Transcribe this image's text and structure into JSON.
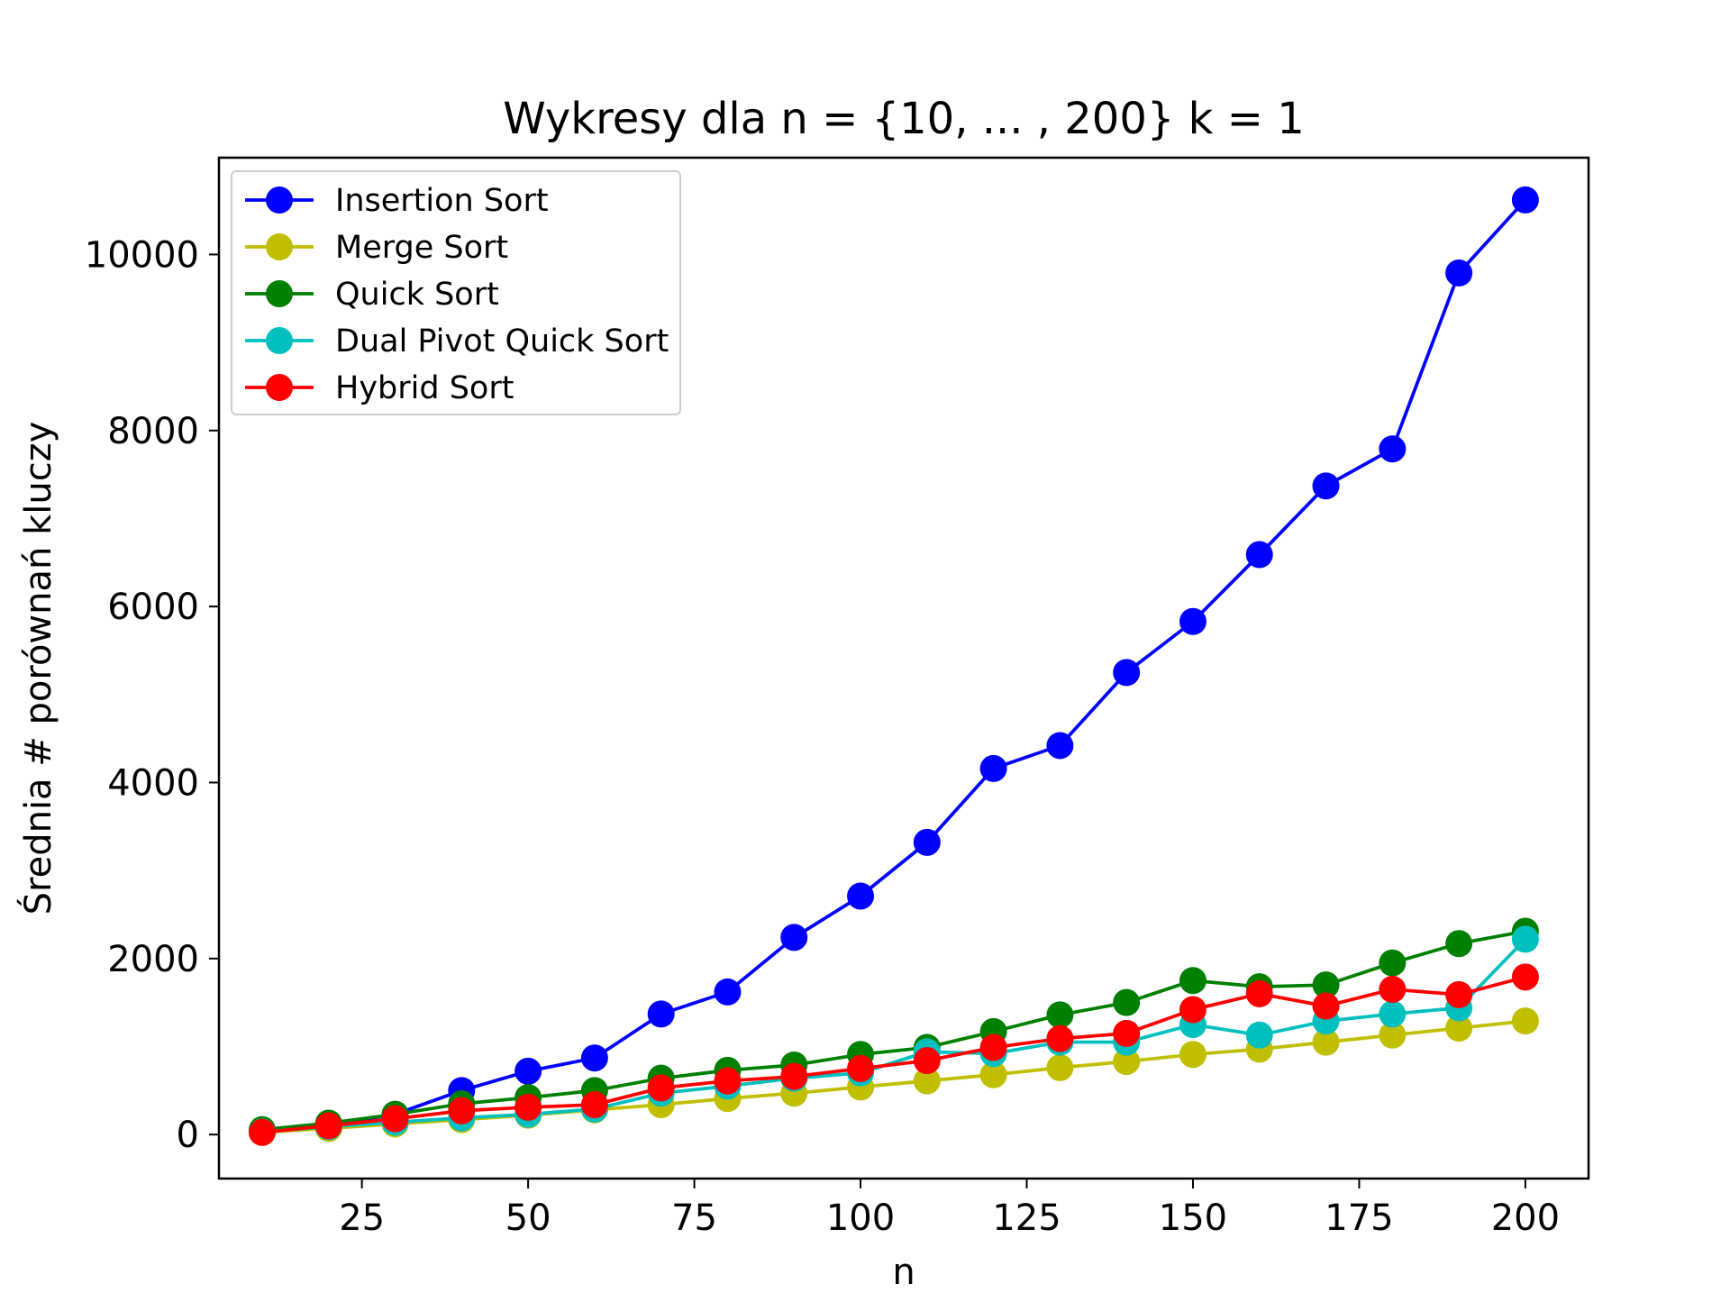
{
  "chart_data": {
    "type": "line",
    "title": "Wykresy dla n = {10, ... , 200} k = 1",
    "xlabel": "n",
    "ylabel": "Średnia # porównań kluczy",
    "xlim": [
      3.5,
      209.5
    ],
    "ylim": [
      -500,
      11100
    ],
    "xticks": [
      25,
      50,
      75,
      100,
      125,
      150,
      175,
      200
    ],
    "xtick_labels": [
      "25",
      "50",
      "75",
      "100",
      "125",
      "150",
      "175",
      "200"
    ],
    "yticks": [
      0,
      2000,
      4000,
      6000,
      8000,
      10000
    ],
    "ytick_labels": [
      "0",
      "2000",
      "4000",
      "6000",
      "8000",
      "10000"
    ],
    "grid": false,
    "legend_position": "upper-left",
    "x": [
      10,
      20,
      30,
      40,
      50,
      60,
      70,
      80,
      90,
      100,
      110,
      120,
      130,
      140,
      150,
      160,
      170,
      180,
      190,
      200
    ],
    "series": [
      {
        "name": "Insertion Sort",
        "color": "#0000ff",
        "values": [
          35,
          110,
          230,
          500,
          720,
          870,
          1370,
          1620,
          2240,
          2710,
          3320,
          4160,
          4420,
          5250,
          5830,
          6590,
          7370,
          7790,
          9790,
          10620
        ]
      },
      {
        "name": "Merge Sort",
        "color": "#bfbf00",
        "values": [
          25,
          70,
          120,
          170,
          220,
          280,
          340,
          410,
          470,
          540,
          610,
          680,
          760,
          830,
          910,
          970,
          1050,
          1130,
          1210,
          1290
        ]
      },
      {
        "name": "Quick Sort",
        "color": "#008000",
        "values": [
          55,
          130,
          230,
          350,
          420,
          500,
          640,
          730,
          790,
          910,
          990,
          1170,
          1360,
          1500,
          1750,
          1680,
          1700,
          1950,
          2170,
          2310
        ]
      },
      {
        "name": "Dual Pivot Quick Sort",
        "color": "#00bfbf",
        "values": [
          30,
          90,
          140,
          190,
          230,
          290,
          470,
          550,
          640,
          700,
          940,
          920,
          1050,
          1050,
          1250,
          1130,
          1290,
          1370,
          1440,
          2220
        ]
      },
      {
        "name": "Hybrid Sort",
        "color": "#ff0000",
        "values": [
          25,
          100,
          180,
          270,
          310,
          340,
          530,
          610,
          660,
          750,
          840,
          990,
          1090,
          1150,
          1420,
          1600,
          1460,
          1650,
          1590,
          1790
        ]
      }
    ]
  }
}
